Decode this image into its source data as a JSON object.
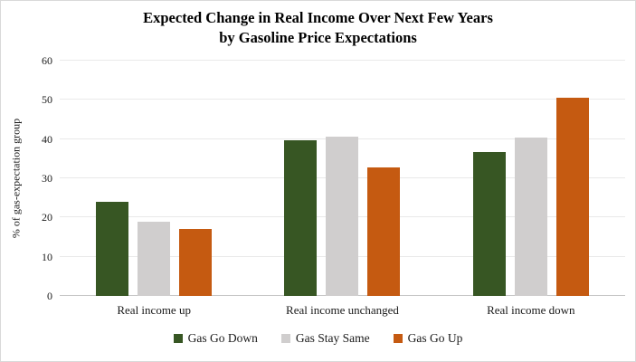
{
  "title": {
    "line1": "Expected Change in Real Income Over Next Few Years",
    "line2": "by Gasoline Price Expectations"
  },
  "y_axis": {
    "label": "% of gas-expectation group",
    "ticks": [
      0,
      10,
      20,
      30,
      40,
      50,
      60
    ],
    "max": 60
  },
  "chart_data": {
    "type": "bar",
    "title": "Expected Change in Real Income Over Next Few Years by Gasoline Price Expectations",
    "categories": [
      "Real income up",
      "Real income unchanged",
      "Real income down"
    ],
    "series": [
      {
        "name": "Gas Go Down",
        "color": "#375623",
        "values": [
          24.0,
          39.6,
          36.8
        ]
      },
      {
        "name": "Gas Stay Same",
        "color": "#d0cece",
        "values": [
          19.0,
          40.7,
          40.4
        ]
      },
      {
        "name": "Gas Go Up",
        "color": "#c55a11",
        "values": [
          17.1,
          32.7,
          50.6
        ]
      }
    ],
    "xlabel": "",
    "ylabel": "% of gas-expectation group",
    "ylim": [
      0,
      60
    ],
    "grid": true,
    "legend_position": "bottom",
    "colors": {
      "gridline": "#e9e9e9",
      "axis_line": "#c6c6c6",
      "frame_border": "#d9d9d9"
    }
  }
}
